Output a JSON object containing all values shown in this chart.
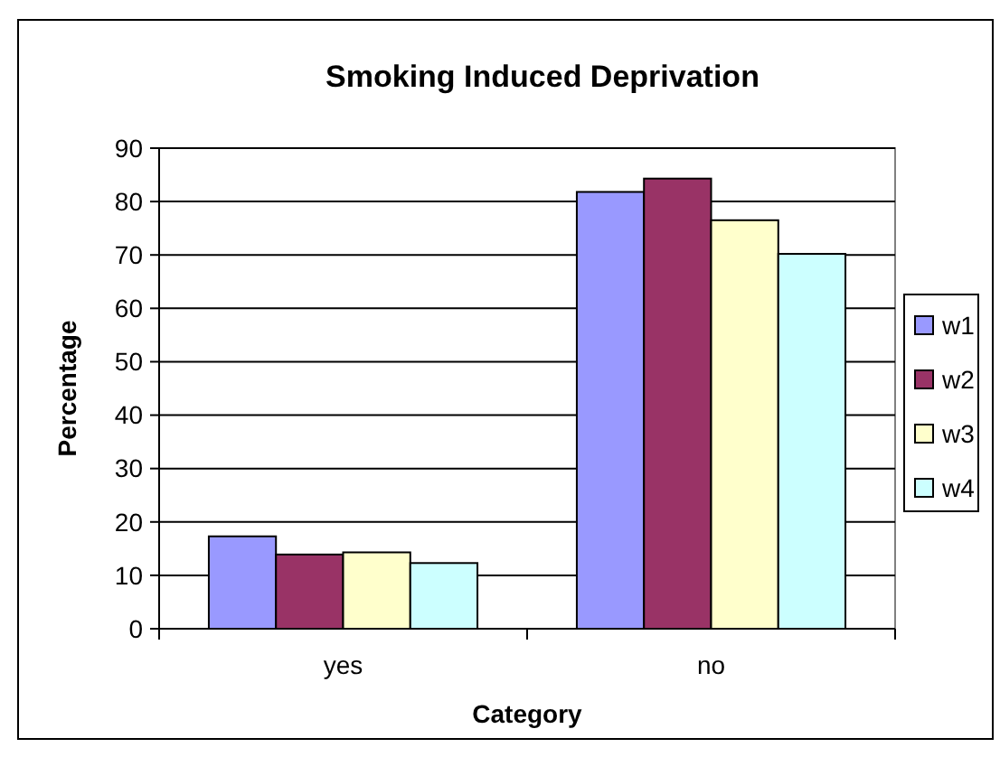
{
  "chart_data": {
    "type": "bar",
    "title": "Smoking Induced Deprivation",
    "xlabel": "Category",
    "ylabel": "Percentage",
    "categories": [
      "yes",
      "no"
    ],
    "series": [
      {
        "name": "w1",
        "color": "#9999ff",
        "values": [
          17.3,
          81.8
        ]
      },
      {
        "name": "w2",
        "color": "#993366",
        "values": [
          13.9,
          84.3
        ]
      },
      {
        "name": "w3",
        "color": "#ffffcc",
        "values": [
          14.3,
          76.5
        ]
      },
      {
        "name": "w4",
        "color": "#ccffff",
        "values": [
          12.3,
          70.2
        ]
      }
    ],
    "ylim": [
      0,
      90
    ],
    "yticks": [
      0,
      10,
      20,
      30,
      40,
      50,
      60,
      70,
      80,
      90
    ],
    "grid": "y",
    "legend": "right"
  }
}
